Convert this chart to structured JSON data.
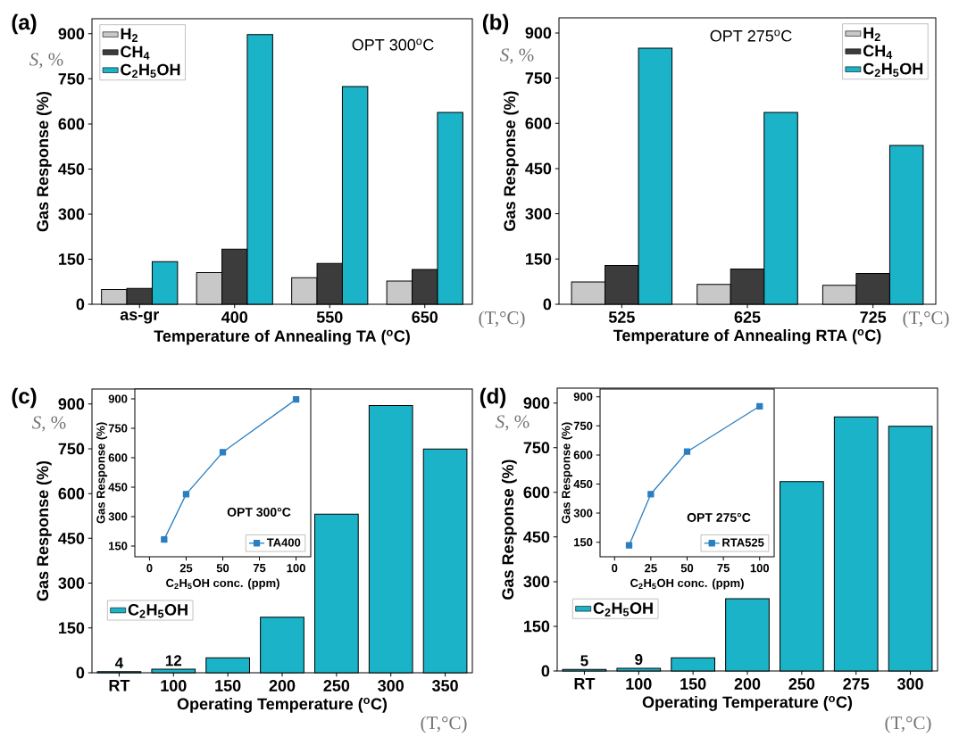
{
  "chart_data": [
    {
      "type": "bar",
      "categories": [
        "as-gr",
        "400",
        "550",
        "650"
      ],
      "xlabel": "Temperature of Annealing TA ($^{o}$C)",
      "ylabel": "Gas Response (%)",
      "ylim": [
        0,
        950
      ],
      "yticks": [
        0,
        150,
        300,
        450,
        600,
        750,
        900
      ],
      "legend": "top left",
      "series": [
        {
          "name": "H$_{2}$",
          "color": "#c8c8c8",
          "values": [
            49,
            105,
            88,
            77
          ]
        },
        {
          "name": "CH$_{4}$",
          "color": "#3c3c3c",
          "values": [
            53,
            183,
            136,
            116
          ]
        },
        {
          "name": "C$_{2}$H$_{5}$OH",
          "color": "#1ab3c8",
          "values": [
            142,
            897,
            724,
            638
          ]
        }
      ],
      "annotations": [
        "(a)",
        "*S*, %",
        "(T,°C)",
        "OPT 300$^{o}$C"
      ]
    },
    {
      "type": "bar",
      "categories": [
        "525",
        "625",
        "725"
      ],
      "xlabel": "Temperature of Annealing RTA ($^{o}$C)",
      "ylabel": "Gas Response (%)",
      "ylim": [
        0,
        950
      ],
      "yticks": [
        0,
        150,
        300,
        450,
        600,
        750,
        900
      ],
      "legend": "top right",
      "series": [
        {
          "name": "H$_{2}$",
          "color": "#c8c8c8",
          "values": [
            74,
            66,
            63
          ]
        },
        {
          "name": "CH$_{4}$",
          "color": "#3c3c3c",
          "values": [
            129,
            117,
            102
          ]
        },
        {
          "name": "C$_{2}$H$_{5}$OH",
          "color": "#1ab3c8",
          "values": [
            849,
            636,
            527
          ]
        }
      ],
      "annotations": [
        "(b)",
        "*S*, %",
        "(T,°C)",
        "OPT 275$^{o}$C"
      ]
    },
    {
      "type": "bar",
      "categories": [
        "RT",
        "100",
        "150",
        "200",
        "250",
        "300",
        "350"
      ],
      "xlabel": "Operating Temperature ($^{o}$C)",
      "ylabel": "Gas Response (%)",
      "ylim": [
        0,
        950
      ],
      "yticks": [
        0,
        150,
        300,
        450,
        600,
        750,
        900
      ],
      "legend": "left",
      "series": [
        {
          "name": "C$_{2}$H$_{5}$OH",
          "color": "#1ab3c8",
          "values": [
            4,
            12,
            50,
            186,
            531,
            895,
            749
          ],
          "value_labels": [
            "4",
            "12",
            null,
            null,
            null,
            null,
            null
          ]
        }
      ],
      "annotations": [
        "(c)",
        "*S*, %",
        "(T,°C)"
      ]
    },
    {
      "type": "line",
      "x": [
        10,
        25,
        50,
        100
      ],
      "xlim": [
        -10,
        110
      ],
      "xticks": [
        0,
        25,
        50,
        75,
        100
      ],
      "ylim": [
        95,
        950
      ],
      "yticks": [
        150,
        300,
        450,
        600,
        750,
        900
      ],
      "xlabel": "C$_{2}$H$_{5}$OH conc. (ppm)",
      "ylabel": "Gas Response (%)",
      "marker": "square",
      "legend": "bottom right",
      "series": [
        {
          "name": "TA400",
          "color": "#2a7fc0",
          "values": [
            183,
            414,
            628,
            897
          ]
        }
      ],
      "annotations": [
        "OPT 300°C"
      ]
    },
    {
      "type": "bar",
      "categories": [
        "RT",
        "100",
        "150",
        "200",
        "250",
        "275",
        "300"
      ],
      "xlabel": "Operating Temperature ($^{o}$C)",
      "ylabel": "Gas Response (%)",
      "ylim": [
        0,
        950
      ],
      "yticks": [
        0,
        150,
        300,
        450,
        600,
        750,
        900
      ],
      "legend": "left",
      "series": [
        {
          "name": "C$_{2}$H$_{5}$OH",
          "color": "#1ab3c8",
          "values": [
            5,
            9,
            44,
            243,
            636,
            853,
            822
          ],
          "value_labels": [
            "5",
            "9",
            null,
            null,
            null,
            null,
            null
          ]
        }
      ],
      "annotations": [
        "(d)",
        "*S*, %",
        "(T,°C)"
      ]
    },
    {
      "type": "line",
      "x": [
        10,
        25,
        50,
        100
      ],
      "xlim": [
        -10,
        110
      ],
      "xticks": [
        0,
        25,
        50,
        75,
        100
      ],
      "ylim": [
        75,
        940
      ],
      "yticks": [
        150,
        300,
        450,
        600,
        750,
        900
      ],
      "xlabel": "C$_{2}$H$_{5}$OH conc. (ppm)",
      "ylabel": "Gas Response (%)",
      "marker": "square",
      "legend": "bottom right",
      "series": [
        {
          "name": "RTA525",
          "color": "#2a7fc0",
          "values": [
            134,
            398,
            617,
            851
          ]
        }
      ],
      "annotations": [
        "OPT 275°C"
      ]
    }
  ]
}
